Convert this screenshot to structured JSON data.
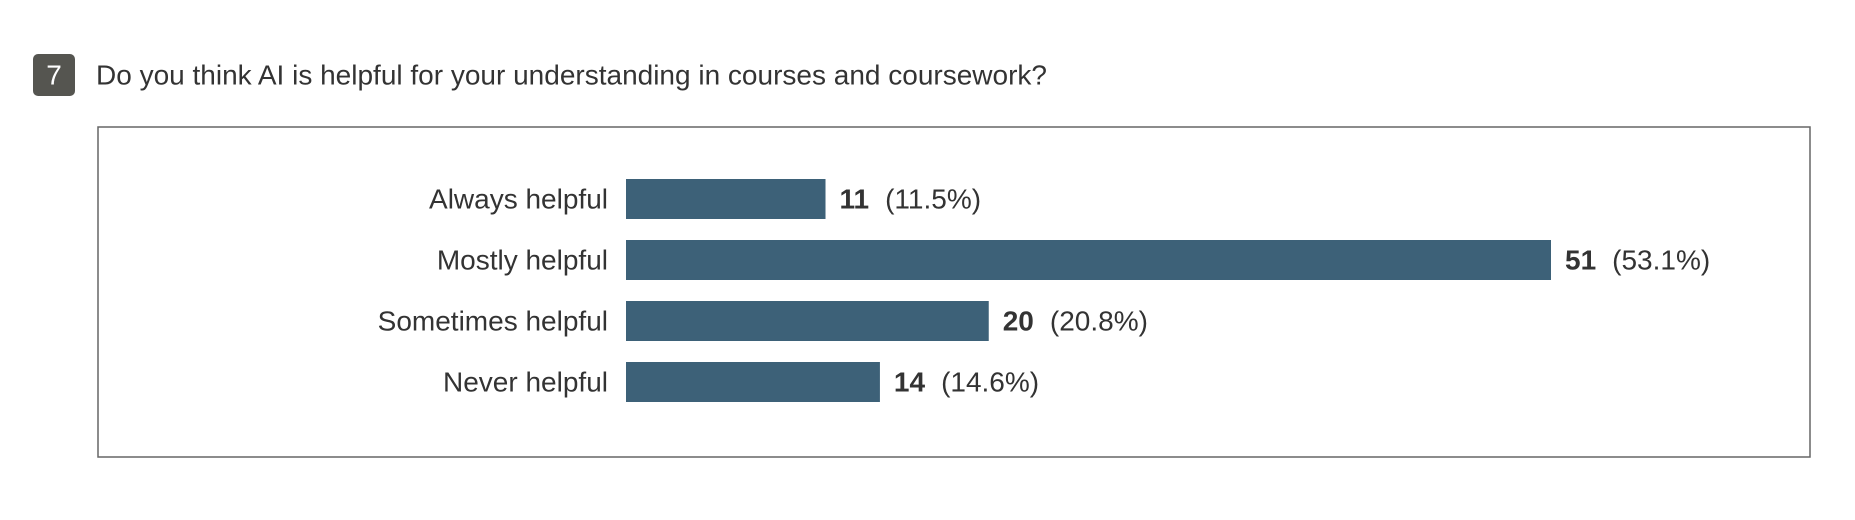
{
  "question": {
    "number": "7",
    "text": "Do you think AI is helpful for your understanding in courses and coursework?"
  },
  "chart_data": {
    "type": "bar",
    "orientation": "horizontal",
    "color": "#3d6178",
    "categories": [
      "Always helpful",
      "Mostly helpful",
      "Sometimes helpful",
      "Never helpful"
    ],
    "values": [
      11,
      51,
      20,
      14
    ],
    "share_labels": [
      "(11.5%)",
      "(53.1%)",
      "(20.8%)",
      "(14.6%)"
    ]
  }
}
